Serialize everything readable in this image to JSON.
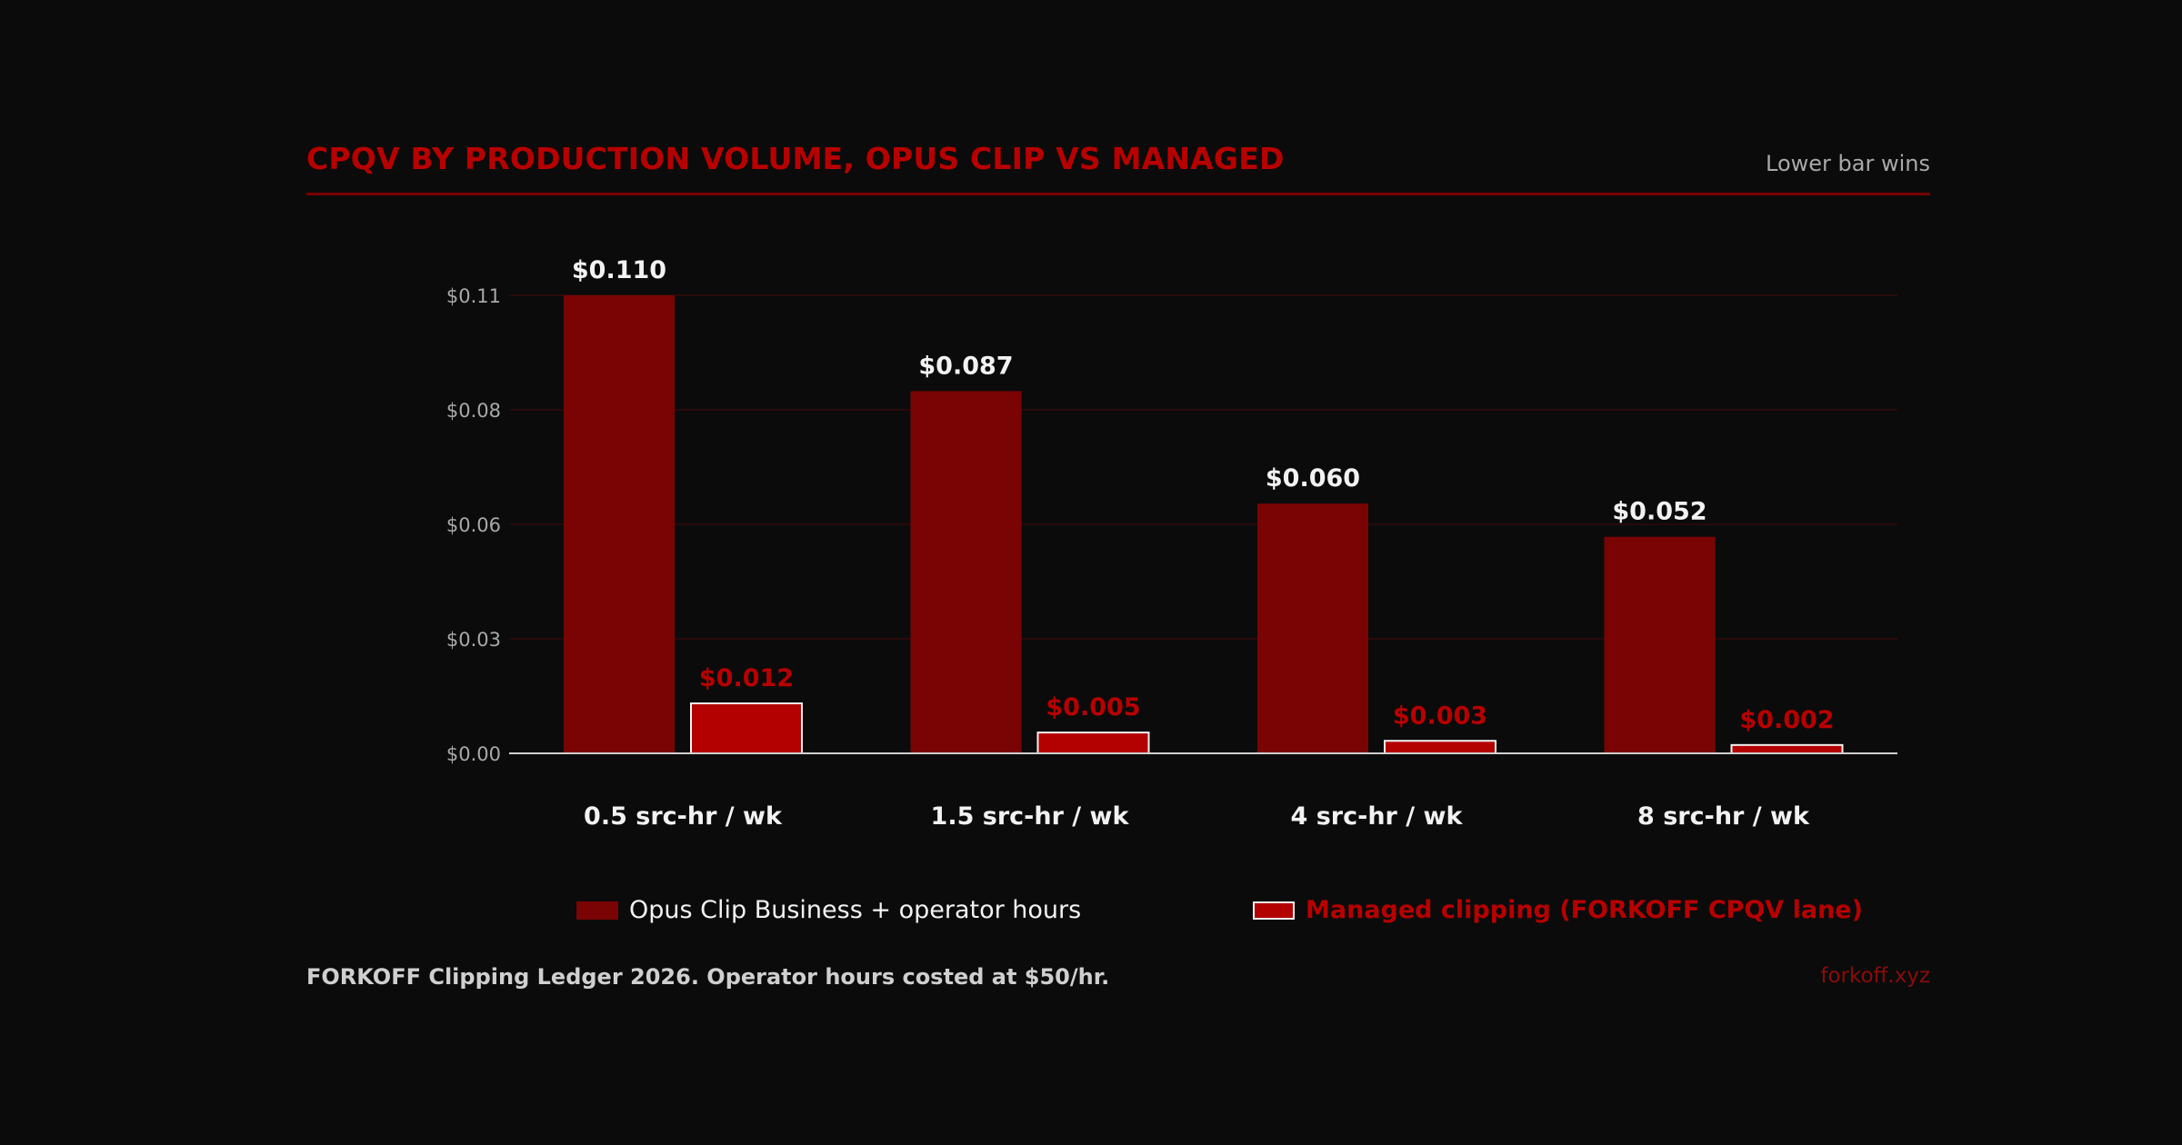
{
  "header": {
    "title": "CPQV BY PRODUCTION VOLUME, OPUS CLIP VS MANAGED",
    "subtitle": "Lower bar wins"
  },
  "footer": {
    "source": "FORKOFF Clipping Ledger 2026. Operator hours costed at $50/hr.",
    "site": "forkoff.xyz"
  },
  "colors": {
    "background": "#0b0b0b",
    "accent": "#b80000",
    "opus_bar": "#7a0404",
    "managed_bar": "#b30000",
    "managed_outline": "#f2f2f2",
    "grid": "#2a0a0a",
    "tick_text": "#a9a9a9",
    "label_text": "#f2f2f2"
  },
  "chart_data": {
    "type": "bar",
    "categories": [
      "0.5 src-hr / wk",
      "1.5 src-hr / wk",
      "4 src-hr / wk",
      "8 src-hr / wk"
    ],
    "series": [
      {
        "name": "Opus Clip Business + operator hours",
        "values": [
          0.11,
          0.087,
          0.06,
          0.052
        ],
        "labels": [
          "$0.110",
          "$0.087",
          "$0.060",
          "$0.052"
        ]
      },
      {
        "name": "Managed clipping (FORKOFF CPQV lane)",
        "values": [
          0.012,
          0.005,
          0.003,
          0.002
        ],
        "labels": [
          "$0.012",
          "$0.005",
          "$0.003",
          "$0.002"
        ]
      }
    ],
    "yticks": [
      0.0,
      0.0275,
      0.055,
      0.0825,
      0.11
    ],
    "ytick_labels": [
      "$0.00",
      "$0.03",
      "$0.06",
      "$0.08",
      "$0.11"
    ],
    "ylim": [
      0,
      0.11
    ],
    "grid": true,
    "legend_position": "bottom"
  }
}
